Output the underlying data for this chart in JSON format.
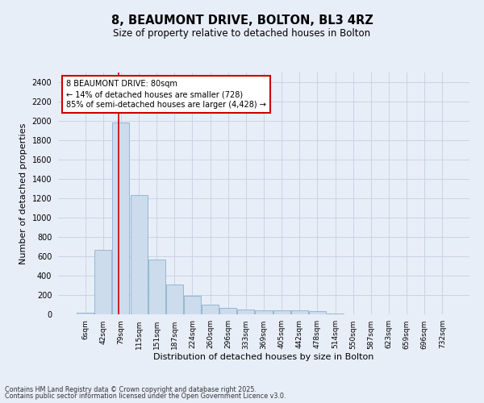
{
  "title1": "8, BEAUMONT DRIVE, BOLTON, BL3 4RZ",
  "title2": "Size of property relative to detached houses in Bolton",
  "xlabel": "Distribution of detached houses by size in Bolton",
  "ylabel": "Number of detached properties",
  "categories": [
    "6sqm",
    "42sqm",
    "79sqm",
    "115sqm",
    "151sqm",
    "187sqm",
    "224sqm",
    "260sqm",
    "296sqm",
    "333sqm",
    "369sqm",
    "405sqm",
    "442sqm",
    "478sqm",
    "514sqm",
    "550sqm",
    "587sqm",
    "623sqm",
    "659sqm",
    "696sqm",
    "732sqm"
  ],
  "values": [
    15,
    670,
    1980,
    1230,
    570,
    305,
    195,
    100,
    65,
    50,
    45,
    45,
    45,
    30,
    8,
    4,
    3,
    2,
    1,
    1,
    0
  ],
  "bar_color": "#ccdcec",
  "bar_edge_color": "#8ab0cc",
  "grid_color": "#c8d4e4",
  "background_color": "#e8eef8",
  "annotation_text": "8 BEAUMONT DRIVE: 80sqm\n← 14% of detached houses are smaller (728)\n85% of semi-detached houses are larger (4,428) →",
  "annotation_box_color": "#ffffff",
  "annotation_box_edge": "#cc0000",
  "red_line_x": 2.0,
  "ylim": [
    0,
    2500
  ],
  "yticks": [
    0,
    200,
    400,
    600,
    800,
    1000,
    1200,
    1400,
    1600,
    1800,
    2000,
    2200,
    2400
  ],
  "footer1": "Contains HM Land Registry data © Crown copyright and database right 2025.",
  "footer2": "Contains public sector information licensed under the Open Government Licence v3.0."
}
